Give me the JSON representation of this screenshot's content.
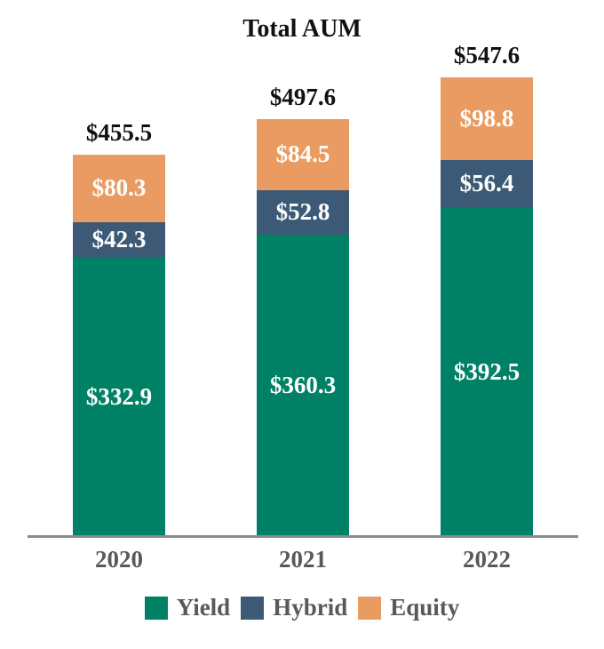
{
  "chart_data": {
    "type": "bar",
    "subtype": "stacked-column",
    "title": "Total AUM",
    "categories": [
      "2020",
      "2021",
      "2022"
    ],
    "series": [
      {
        "name": "Yield",
        "color": "#008166",
        "values": [
          332.9,
          360.3,
          392.5
        ]
      },
      {
        "name": "Hybrid",
        "color": "#3C5A76",
        "values": [
          42.3,
          52.8,
          56.4
        ]
      },
      {
        "name": "Equity",
        "color": "#E99B62",
        "values": [
          80.3,
          84.5,
          98.8
        ]
      }
    ],
    "totals": [
      455.5,
      497.6,
      547.6
    ],
    "value_prefix": "$",
    "value_decimals": 1,
    "legend": [
      "Yield",
      "Hybrid",
      "Equity"
    ],
    "legend_position": "bottom",
    "grid": false,
    "ylim": [
      0,
      560
    ],
    "colors": {
      "total_label_text": "#111111",
      "segment_label_text": "#ffffff",
      "category_label_text": "#595959",
      "legend_text": "#595959",
      "axis_line": "#8a8a8a",
      "background": "#ffffff"
    }
  }
}
